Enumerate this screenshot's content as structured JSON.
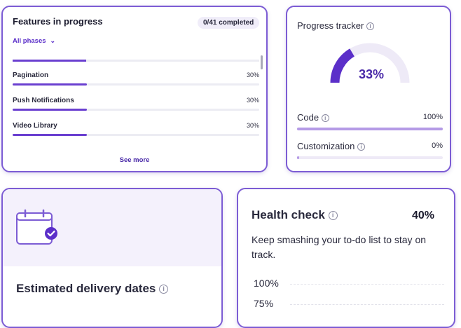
{
  "features": {
    "title": "Features in progress",
    "completed_badge": "0/41 completed",
    "phase_filter": "All phases",
    "items": [
      {
        "name": "Pagination",
        "percent_label": "30%",
        "progress": 0.3
      },
      {
        "name": "Push Notifications",
        "percent_label": "30%",
        "progress": 0.3
      },
      {
        "name": "Video Library",
        "percent_label": "30%",
        "progress": 0.3
      }
    ],
    "see_more": "See more"
  },
  "tracker": {
    "title": "Progress tracker",
    "gauge_label": "33%",
    "gauge_value": 0.33,
    "rows": [
      {
        "name": "Code",
        "percent_label": "100%",
        "progress": 1.0
      },
      {
        "name": "Customization",
        "percent_label": "0%",
        "progress": 0.0
      }
    ]
  },
  "delivery": {
    "title": "Estimated delivery dates"
  },
  "health": {
    "title": "Health check",
    "percent": "40%",
    "description": "Keep smashing your to-do list to stay on track.",
    "y_ticks": [
      "100%",
      "75%"
    ]
  },
  "colors": {
    "accent": "#6a3fd0",
    "accent_light": "#b59be6",
    "card_border": "#7c5cd4"
  },
  "icons": [
    "info-icon",
    "chevron-down-icon",
    "calendar-check-icon"
  ]
}
